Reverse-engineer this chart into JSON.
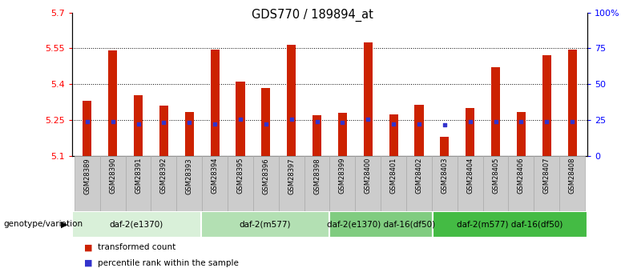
{
  "title": "GDS770 / 189894_at",
  "samples": [
    "GSM28389",
    "GSM28390",
    "GSM28391",
    "GSM28392",
    "GSM28393",
    "GSM28394",
    "GSM28395",
    "GSM28396",
    "GSM28397",
    "GSM28398",
    "GSM28399",
    "GSM28400",
    "GSM28401",
    "GSM28402",
    "GSM28403",
    "GSM28404",
    "GSM28405",
    "GSM28406",
    "GSM28407",
    "GSM28408"
  ],
  "bar_values": [
    5.33,
    5.54,
    5.355,
    5.31,
    5.285,
    5.545,
    5.41,
    5.385,
    5.565,
    5.27,
    5.28,
    5.575,
    5.275,
    5.315,
    5.18,
    5.3,
    5.47,
    5.285,
    5.52,
    5.545
  ],
  "percentile_values": [
    5.245,
    5.245,
    5.235,
    5.24,
    5.24,
    5.235,
    5.255,
    5.235,
    5.255,
    5.245,
    5.24,
    5.255,
    5.235,
    5.235,
    5.23,
    5.245,
    5.245,
    5.245,
    5.245,
    5.245
  ],
  "ylim": [
    5.1,
    5.7
  ],
  "yticks": [
    5.1,
    5.25,
    5.4,
    5.55,
    5.7
  ],
  "ytick_labels": [
    "5.1",
    "5.25",
    "5.4",
    "5.55",
    "5.7"
  ],
  "right_yticks": [
    0,
    25,
    50,
    75,
    100
  ],
  "right_ytick_labels": [
    "0",
    "25",
    "50",
    "75",
    "100%"
  ],
  "grid_values": [
    5.25,
    5.4,
    5.55
  ],
  "bar_color": "#cc2200",
  "percentile_color": "#3333cc",
  "groups": [
    {
      "label": "daf-2(e1370)",
      "start": 0,
      "end": 4,
      "color": "#d9f0d9"
    },
    {
      "label": "daf-2(m577)",
      "start": 5,
      "end": 9,
      "color": "#b3e0b3"
    },
    {
      "label": "daf-2(e1370) daf-16(df50)",
      "start": 10,
      "end": 13,
      "color": "#80cc80"
    },
    {
      "label": "daf-2(m577) daf-16(df50)",
      "start": 14,
      "end": 19,
      "color": "#44bb44"
    }
  ],
  "group_label": "genotype/variation",
  "legend_items": [
    {
      "label": "transformed count",
      "color": "#cc2200"
    },
    {
      "label": "percentile rank within the sample",
      "color": "#3333cc"
    }
  ],
  "bar_width": 0.35,
  "base_value": 5.1,
  "xtick_bg_color": "#cccccc",
  "xtick_border_color": "#aaaaaa"
}
